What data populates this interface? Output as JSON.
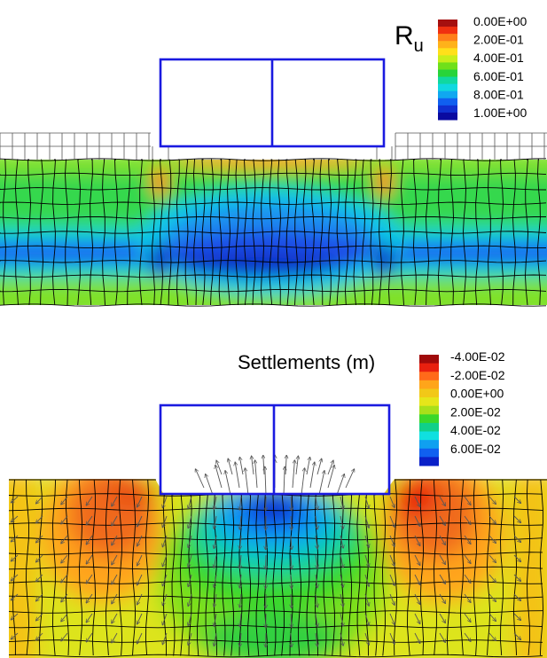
{
  "top_panel": {
    "title": "R",
    "title_subscript": "u",
    "legend": {
      "labels": [
        "0.00E+00",
        "2.00E-01",
        "4.00E-01",
        "6.00E-01",
        "8.00E-01",
        "1.00E+00"
      ],
      "colors": [
        "#a50f0f",
        "#f03010",
        "#ff7f1a",
        "#ffb21a",
        "#ffe01a",
        "#c8ee1a",
        "#6fe01a",
        "#28d43a",
        "#10d8a0",
        "#10d8e0",
        "#10a8f0",
        "#1060f0",
        "#1030d0",
        "#0a0aa0"
      ]
    }
  },
  "bottom_panel": {
    "title": "Settlements (m)",
    "legend": {
      "labels": [
        "-4.00E-02",
        "-2.00E-02",
        "0.00E+00",
        "2.00E-02",
        "4.00E-02",
        "6.00E-02"
      ],
      "colors": [
        "#a00a0a",
        "#e8200f",
        "#ff6a1a",
        "#ffa51a",
        "#f2c818",
        "#e6e61a",
        "#a8e01a",
        "#3ad82a",
        "#10d08a",
        "#10e0e0",
        "#10a0f0",
        "#1060f0",
        "#0a20c8"
      ]
    }
  },
  "colors": {
    "structure_outline": "#1a1ae0",
    "mesh_lines": "#000000",
    "arrows": "#555555"
  }
}
